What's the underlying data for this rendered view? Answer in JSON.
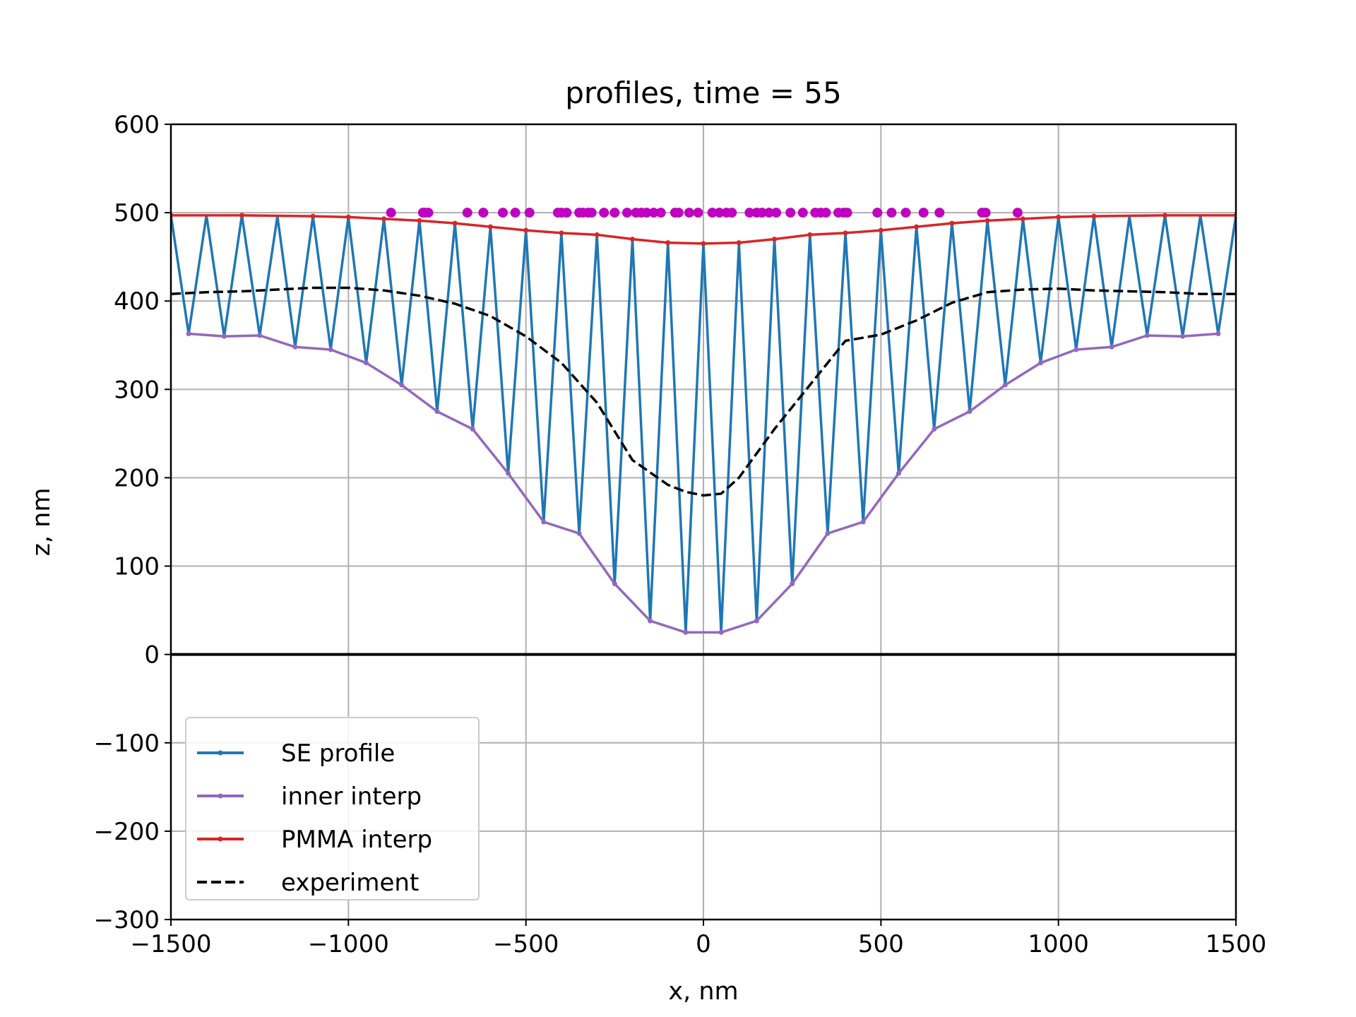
{
  "chart_data": {
    "type": "line",
    "title": "profiles, time = 55",
    "xlabel": "x, nm",
    "ylabel": "z, nm",
    "xlim": [
      -1500,
      1500
    ],
    "ylim": [
      -300,
      600
    ],
    "xticks": [
      -1500,
      -1000,
      -500,
      0,
      500,
      1000,
      1500
    ],
    "xtick_labels": [
      "−1500",
      "−1000",
      "−500",
      "0",
      "500",
      "1000",
      "1500"
    ],
    "yticks": [
      -300,
      -200,
      -100,
      0,
      100,
      200,
      300,
      400,
      500,
      600
    ],
    "ytick_labels": [
      "−300",
      "−200",
      "−100",
      "0",
      "100",
      "200",
      "300",
      "400",
      "500",
      "600"
    ],
    "grid": true,
    "legend_position": "lower-left",
    "baseline_y": 0,
    "series": [
      {
        "name": "SE profile",
        "color": "#1f77b4",
        "x": [
          -1500,
          -1450,
          -1400,
          -1350,
          -1300,
          -1250,
          -1200,
          -1150,
          -1100,
          -1050,
          -1000,
          -950,
          -900,
          -850,
          -800,
          -750,
          -700,
          -650,
          -600,
          -550,
          -500,
          -450,
          -400,
          -350,
          -300,
          -250,
          -200,
          -150,
          -100,
          -50,
          0,
          50,
          100,
          150,
          200,
          250,
          300,
          350,
          400,
          450,
          500,
          550,
          600,
          650,
          700,
          750,
          800,
          850,
          900,
          950,
          1000,
          1050,
          1100,
          1150,
          1200,
          1250,
          1300,
          1350,
          1400,
          1450,
          1500
        ],
        "y": [
          497,
          363,
          497,
          360,
          497,
          361,
          496,
          348,
          496,
          345,
          495,
          330,
          493,
          305,
          491,
          275,
          488,
          255,
          484,
          205,
          480,
          150,
          477,
          137,
          475,
          80,
          470,
          38,
          466,
          25,
          465,
          25,
          465,
          38,
          470,
          80,
          475,
          137,
          477,
          150,
          480,
          205,
          484,
          255,
          488,
          275,
          491,
          305,
          493,
          330,
          495,
          345,
          496,
          348,
          496,
          361,
          497,
          360,
          497,
          363,
          497
        ]
      },
      {
        "name": "inner interp",
        "color": "#9467bd",
        "x": [
          -1450,
          -1350,
          -1250,
          -1150,
          -1050,
          -950,
          -850,
          -750,
          -650,
          -550,
          -450,
          -350,
          -250,
          -150,
          -50,
          50,
          150,
          250,
          350,
          450,
          550,
          650,
          750,
          850,
          950,
          1050,
          1150,
          1250,
          1350,
          1450
        ],
        "y": [
          363,
          360,
          361,
          348,
          345,
          330,
          305,
          275,
          255,
          205,
          150,
          137,
          80,
          38,
          25,
          25,
          38,
          80,
          137,
          150,
          205,
          255,
          275,
          305,
          330,
          345,
          348,
          361,
          360,
          363
        ]
      },
      {
        "name": "PMMA interp",
        "color": "#d62728",
        "x": [
          -1500,
          -1300,
          -1100,
          -1000,
          -900,
          -800,
          -700,
          -600,
          -500,
          -400,
          -300,
          -200,
          -100,
          0,
          100,
          200,
          300,
          400,
          500,
          600,
          700,
          800,
          900,
          1000,
          1100,
          1300,
          1500
        ],
        "y": [
          497,
          497,
          496,
          495,
          493,
          491,
          488,
          484,
          480,
          477,
          475,
          470,
          466,
          465,
          466,
          470,
          475,
          477,
          480,
          484,
          488,
          491,
          493,
          495,
          496,
          497,
          497
        ]
      },
      {
        "name": "experiment",
        "color": "#000000",
        "dashed": true,
        "x": [
          -1500,
          -1400,
          -1300,
          -1200,
          -1100,
          -1000,
          -900,
          -800,
          -700,
          -600,
          -500,
          -400,
          -300,
          -200,
          -100,
          -50,
          0,
          50,
          100,
          200,
          300,
          400,
          500,
          600,
          700,
          800,
          900,
          1000,
          1100,
          1200,
          1300,
          1400,
          1500
        ],
        "y": [
          408,
          410,
          411,
          413,
          415,
          415,
          412,
          406,
          397,
          383,
          360,
          330,
          285,
          220,
          192,
          184,
          180,
          182,
          200,
          255,
          305,
          355,
          362,
          378,
          398,
          410,
          413,
          414,
          412,
          411,
          410,
          408,
          408
        ]
      }
    ],
    "markers": {
      "color": "#c000c0",
      "y": 500,
      "x": [
        -880,
        -790,
        -785,
        -775,
        -665,
        -620,
        -565,
        -530,
        -490,
        -410,
        -400,
        -385,
        -350,
        -340,
        -325,
        -315,
        -280,
        -250,
        -215,
        -190,
        -175,
        -160,
        -140,
        -120,
        -80,
        -70,
        -40,
        -15,
        25,
        45,
        65,
        80,
        130,
        150,
        165,
        185,
        205,
        245,
        280,
        315,
        330,
        345,
        380,
        395,
        405,
        490,
        530,
        570,
        620,
        665,
        785,
        795,
        885
      ]
    }
  }
}
